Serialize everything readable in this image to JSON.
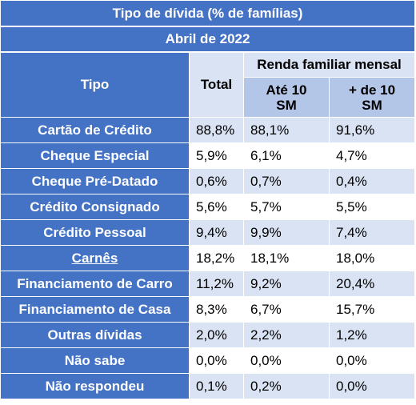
{
  "header": {
    "title": "Tipo de dívida (% de famílias)",
    "subtitle": "Abril de 2022",
    "col_tipo": "Tipo",
    "col_total": "Total",
    "group_label": "Renda familiar mensal",
    "col_ate_line1": "Até 10",
    "col_ate_line2": "SM",
    "col_mais_line1": "+ de 10",
    "col_mais_line2": "SM"
  },
  "rows": [
    {
      "tipo": "Cartão de Crédito",
      "total": "88,8%",
      "ate10": "88,1%",
      "mais10": "91,6%"
    },
    {
      "tipo": "Cheque Especial",
      "total": "5,9%",
      "ate10": "6,1%",
      "mais10": "4,7%"
    },
    {
      "tipo": "Cheque Pré-Datado",
      "total": "0,6%",
      "ate10": "0,7%",
      "mais10": "0,4%"
    },
    {
      "tipo": "Crédito Consignado",
      "total": "5,6%",
      "ate10": "5,7%",
      "mais10": "5,5%"
    },
    {
      "tipo": "Crédito Pessoal",
      "total": "9,4%",
      "ate10": "9,9%",
      "mais10": "7,4%"
    },
    {
      "tipo": "Carnês",
      "total": "18,2%",
      "ate10": "18,1%",
      "mais10": "18,0%"
    },
    {
      "tipo": "Financiamento de Carro",
      "total": "11,2%",
      "ate10": "9,2%",
      "mais10": "20,4%"
    },
    {
      "tipo": "Financiamento de Casa",
      "total": "8,3%",
      "ate10": "6,7%",
      "mais10": "15,7%"
    },
    {
      "tipo": "Outras dívidas",
      "total": "2,0%",
      "ate10": "2,2%",
      "mais10": "1,2%"
    },
    {
      "tipo": "Não sabe",
      "total": "0,0%",
      "ate10": "0,0%",
      "mais10": "0,0%"
    },
    {
      "tipo": "Não respondeu",
      "total": "0,1%",
      "ate10": "0,2%",
      "mais10": "0,0%"
    }
  ],
  "colors": {
    "header_blue": "#4472c4",
    "header_light_blue": "#b4c6e7",
    "band_light": "#dae3f3",
    "text_white": "#ffffff"
  }
}
